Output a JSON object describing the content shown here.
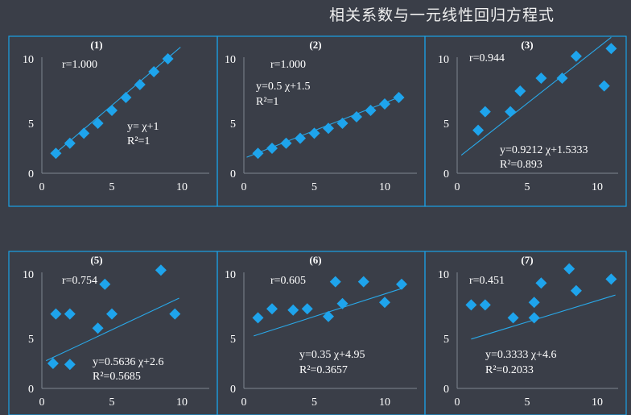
{
  "title": "相关系数与一元线性回归方程式",
  "colors": {
    "point": "#1ea4ec",
    "line": "#29a8e8",
    "border": "#1aa1e6",
    "background": "#3a3e48"
  },
  "chart_data": [
    {
      "type": "scatter",
      "label": "(1)",
      "xlim": [
        0,
        10
      ],
      "ylim": [
        0,
        10
      ],
      "x_ticks": [
        0,
        5,
        10
      ],
      "y_ticks": [
        0,
        5,
        10
      ],
      "points": [
        [
          1,
          2
        ],
        [
          2,
          3
        ],
        [
          3,
          4
        ],
        [
          4,
          5
        ],
        [
          5,
          6
        ],
        [
          6,
          7
        ],
        [
          7,
          8
        ],
        [
          8,
          9
        ],
        [
          9,
          10
        ]
      ],
      "trendline": {
        "slope": 1,
        "intercept": 1,
        "x_range": [
          0.8,
          9.9
        ]
      },
      "annotations": [
        "r=1.000",
        "y= χ+1",
        "R²=1"
      ]
    },
    {
      "type": "scatter",
      "label": "(2)",
      "xlim": [
        0,
        10
      ],
      "ylim": [
        0,
        10
      ],
      "x_ticks": [
        0,
        5,
        10
      ],
      "y_ticks": [
        0,
        5,
        10
      ],
      "points": [
        [
          1,
          2
        ],
        [
          2,
          2.5
        ],
        [
          3,
          3
        ],
        [
          4,
          3.5
        ],
        [
          5,
          4
        ],
        [
          6,
          4.5
        ],
        [
          7,
          5
        ],
        [
          8,
          5.5
        ],
        [
          9,
          6
        ],
        [
          10,
          6.5
        ],
        [
          11,
          7
        ]
      ],
      "trendline": {
        "slope": 0.5,
        "intercept": 1.5,
        "x_range": [
          0.2,
          11.2
        ]
      },
      "annotations": [
        "r=1.000",
        "y=0.5 χ+1.5",
        "R²=1"
      ]
    },
    {
      "type": "scatter",
      "label": "(3)",
      "xlim": [
        0,
        10
      ],
      "ylim": [
        0,
        10
      ],
      "x_ticks": [
        0,
        5,
        10
      ],
      "y_ticks": [
        0,
        5,
        10
      ],
      "points": [
        [
          1.5,
          4.3
        ],
        [
          2,
          5.9
        ],
        [
          3.8,
          5.9
        ],
        [
          4.5,
          7.5
        ],
        [
          6,
          8.5
        ],
        [
          7.5,
          8.5
        ],
        [
          8.5,
          10.2
        ],
        [
          10.5,
          7.9
        ],
        [
          11,
          10.8
        ]
      ],
      "trendline": {
        "slope": 0.9212,
        "intercept": 1.5333,
        "x_range": [
          0.3,
          11
        ]
      },
      "annotations": [
        "r=0.944",
        "y=0.9212 χ+1.5333",
        "R²=0.893"
      ]
    },
    {
      "type": "scatter",
      "label": "(5)",
      "xlim": [
        0,
        10
      ],
      "ylim": [
        0,
        10
      ],
      "x_ticks": [
        0,
        5,
        10
      ],
      "y_ticks": [
        0,
        5,
        10
      ],
      "points": [
        [
          0.8,
          2.5
        ],
        [
          1,
          6.9
        ],
        [
          2,
          2.4
        ],
        [
          2,
          6.9
        ],
        [
          4,
          5.8
        ],
        [
          4.5,
          9.2
        ],
        [
          5,
          6.9
        ],
        [
          8.5,
          10.3
        ],
        [
          9.5,
          6.9
        ]
      ],
      "trendline": {
        "slope": 0.5636,
        "intercept": 2.6,
        "x_range": [
          0.3,
          9.8
        ]
      },
      "annotations": [
        "r=0.754",
        "y=0.5636 χ+2.6",
        "R²=0.5685"
      ]
    },
    {
      "type": "scatter",
      "label": "(6)",
      "xlim": [
        0,
        10
      ],
      "ylim": [
        0,
        10
      ],
      "x_ticks": [
        0,
        5,
        10
      ],
      "y_ticks": [
        0,
        5,
        10
      ],
      "points": [
        [
          1,
          6.6
        ],
        [
          2,
          7.3
        ],
        [
          3.5,
          7.2
        ],
        [
          4.5,
          7.3
        ],
        [
          6,
          6.7
        ],
        [
          6.5,
          9.4
        ],
        [
          7,
          7.7
        ],
        [
          8.5,
          9.4
        ],
        [
          10,
          7.8
        ],
        [
          11.2,
          9.2
        ]
      ],
      "trendline": {
        "slope": 0.35,
        "intercept": 4.95,
        "x_range": [
          0.7,
          11.2
        ]
      },
      "annotations": [
        "r=0.605",
        "y=0.35 χ+4.95",
        "R²=0.3657"
      ]
    },
    {
      "type": "scatter",
      "label": "(7)",
      "xlim": [
        0,
        10
      ],
      "ylim": [
        0,
        10
      ],
      "x_ticks": [
        0,
        5,
        10
      ],
      "y_ticks": [
        0,
        5,
        10
      ],
      "points": [
        [
          1,
          7.6
        ],
        [
          2,
          7.6
        ],
        [
          4,
          6.6
        ],
        [
          5.5,
          6.6
        ],
        [
          5.5,
          7.8
        ],
        [
          6,
          9.3
        ],
        [
          8,
          10.4
        ],
        [
          8.5,
          8.7
        ],
        [
          11,
          9.6
        ]
      ],
      "trendline": {
        "slope": 0.3333,
        "intercept": 4.6,
        "x_range": [
          1,
          11.3
        ]
      },
      "annotations": [
        "r=0.451",
        "y=0.3333 χ+4.6",
        "R²=0.2033"
      ]
    }
  ]
}
